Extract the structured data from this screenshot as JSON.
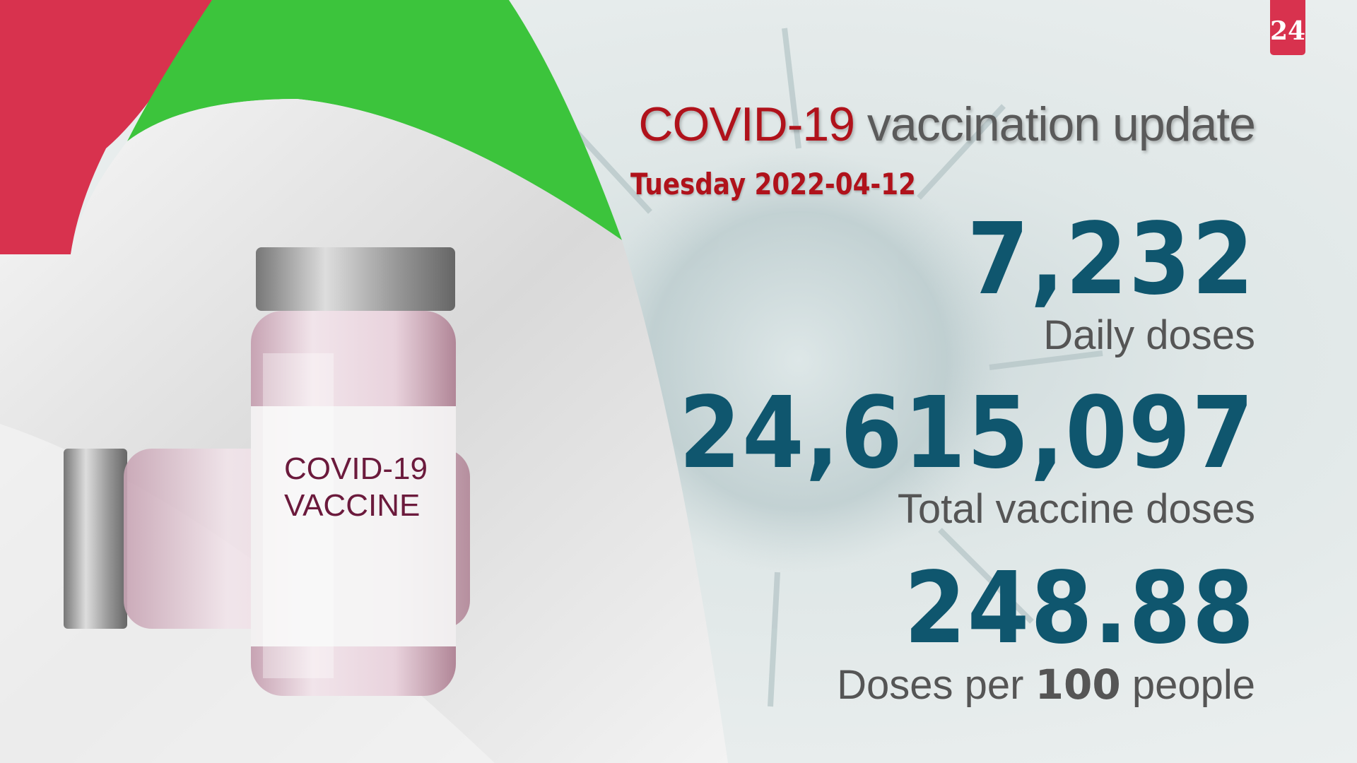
{
  "logo": {
    "text": "24",
    "color": "#d8324e"
  },
  "header": {
    "title_highlight": "COVID-19",
    "title_rest": "vaccination update",
    "date": "Tuesday 2022-04-12"
  },
  "stats": [
    {
      "value": "7,232",
      "label": "Daily doses"
    },
    {
      "value": "24,615,097",
      "label": "Total vaccine doses"
    },
    {
      "value": "248.88",
      "label_pre": "Doses per",
      "label_bold": "100",
      "label_post": "people"
    }
  ],
  "vial": {
    "label_line1": "COVID-19",
    "label_line2": "VACCINE"
  },
  "colors": {
    "accent_red": "#b0121b",
    "number_blue": "#0f566e",
    "flag_red": "#d8324e",
    "flag_green": "#3cc43c"
  }
}
